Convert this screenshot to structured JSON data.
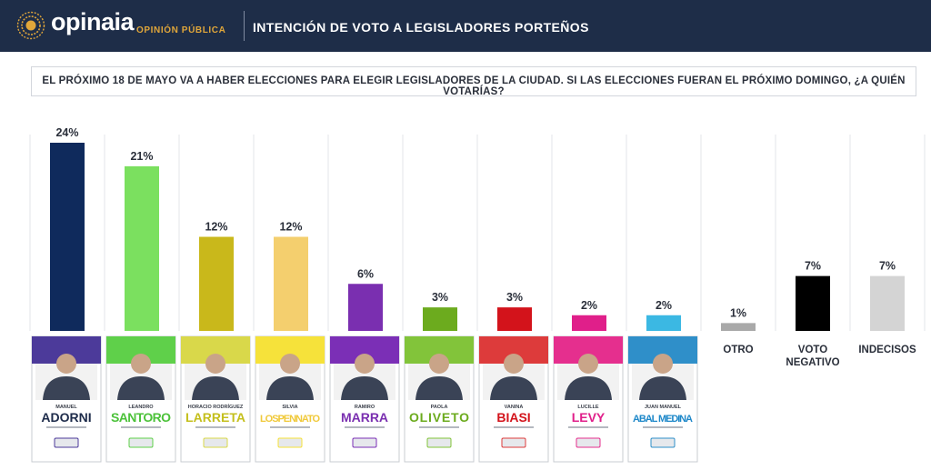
{
  "header": {
    "brand": "opinaia",
    "brand_sub": "OPINIÓN PÚBLICA",
    "title": "INTENCIÓN DE VOTO A LEGISLADORES PORTEÑOS"
  },
  "question": "EL PRÓXIMO 18 DE MAYO VA A HABER ELECCIONES PARA ELEGIR LEGISLADORES DE LA CIUDAD. SI LAS ELECCIONES FUERAN EL PRÓXIMO DOMINGO, ¿A QUIÉN VOTARÍAS?",
  "chart_data": {
    "type": "bar",
    "ylim": [
      0,
      24
    ],
    "grid": false,
    "categories": [
      "ADORNI",
      "SANTORO",
      "LARRETA",
      "LOSPENNATO",
      "MARRA",
      "OLIVETO",
      "BIASI",
      "LEVY",
      "ABAL MEDINA",
      "OTRO",
      "VOTO NEGATIVO",
      "INDECISOS"
    ],
    "values": [
      24,
      21,
      12,
      12,
      6,
      3,
      3,
      2,
      2,
      1,
      7,
      7
    ],
    "labels": [
      "24%",
      "21%",
      "12%",
      "12%",
      "6%",
      "3%",
      "3%",
      "2%",
      "2%",
      "1%",
      "7%",
      "7%"
    ],
    "colors": [
      "#0f2a5c",
      "#7be05f",
      "#c9b81b",
      "#f4cf6e",
      "#7a2fb0",
      "#6cab1e",
      "#d3131b",
      "#e01f8a",
      "#3bb8e3",
      "#a9a9a9",
      "#000000",
      "#d4d4d4"
    ],
    "candidates": [
      {
        "first": "MANUEL",
        "last": "ADORNI",
        "band": "#4c3a9a",
        "name_color": "#1d2b4a",
        "party": "LLA"
      },
      {
        "first": "LEANDRO",
        "last": "SANTORO",
        "band": "#5fd04a",
        "name_color": "#4cc23a",
        "party": "ES AHORA BUENOS AIRES"
      },
      {
        "first": "HORACIO RODRÍGUEZ",
        "last": "LARRETA",
        "band": "#d9d84a",
        "name_color": "#c4bf1c",
        "party": "VOLVAMOS BUENOS AIRES"
      },
      {
        "first": "SILVIA",
        "last": "LOSPENNATO",
        "band": "#f6e23a",
        "name_color": "#f0c93a",
        "party": "PRO"
      },
      {
        "first": "RAMIRO",
        "last": "MARRA",
        "band": "#7b2fb6",
        "name_color": "#7a2fb0",
        "party": "UCEDE"
      },
      {
        "first": "PAOLA",
        "last": "OLIVETO",
        "band": "#82c43a",
        "name_color": "#6cab1e",
        "party": "COALICIÓN CÍVICA"
      },
      {
        "first": "VANINA",
        "last": "BIASI",
        "band": "#dd3b3b",
        "name_color": "#d3131b",
        "party": "FIT"
      },
      {
        "first": "LUCILLE",
        "last": "LEVY",
        "band": "#e52f8e",
        "name_color": "#e01f8a",
        "party": "EVOLUCIÓN"
      },
      {
        "first": "JUAN MANUEL",
        "last": "ABAL MEDINA",
        "band": "#2f8fc9",
        "name_color": "#1e88c9",
        "party": "SEGUIR CAMINANDO"
      }
    ],
    "extra_labels": [
      {
        "lines": [
          "OTRO"
        ]
      },
      {
        "lines": [
          "VOTO",
          "NEGATIVO"
        ]
      },
      {
        "lines": [
          "INDECISOS"
        ]
      }
    ]
  }
}
